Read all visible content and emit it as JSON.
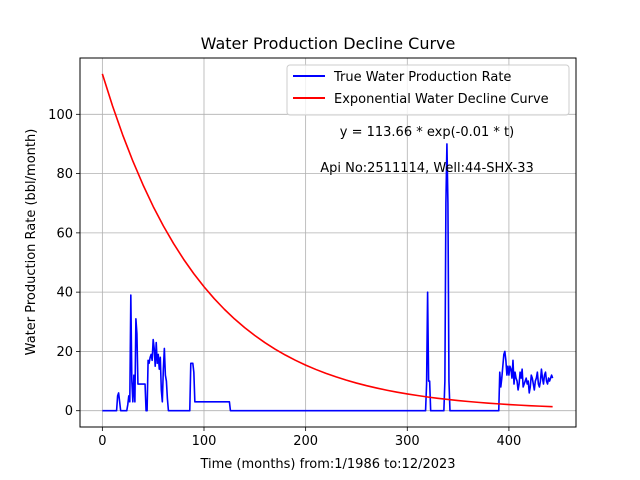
{
  "chart_data": {
    "type": "line",
    "title": "Water Production Decline Curve",
    "xlabel": "Time (months) from:1/1986 to:12/2023",
    "ylabel": "Water Production Rate (bbl/month)",
    "xlim": [
      -22,
      466
    ],
    "ylim": [
      -5.5,
      119
    ],
    "xticks": [
      0,
      100,
      200,
      300,
      400
    ],
    "yticks": [
      0,
      20,
      40,
      60,
      80,
      100
    ],
    "grid": true,
    "legend_position": "top-right",
    "annotations": [
      "y = 113.66 * exp(-0.01 * t)",
      "Api No:2511114, Well:44-SHX-33"
    ],
    "series": [
      {
        "name": "True Water Production Rate",
        "color": "#0000ff",
        "x": [
          0,
          14,
          15,
          16,
          17,
          18,
          24,
          25,
          26,
          27,
          28,
          29,
          30,
          31,
          32,
          33,
          34,
          35,
          36,
          37,
          38,
          42,
          43,
          44,
          45,
          46,
          47,
          48,
          49,
          50,
          51,
          52,
          53,
          54,
          55,
          56,
          57,
          58,
          59,
          60,
          61,
          62,
          63,
          64,
          65,
          66,
          67,
          68,
          69,
          70,
          71,
          86,
          87,
          88,
          89,
          90,
          91,
          92,
          93,
          124,
          125,
          126,
          127,
          318,
          319,
          320,
          321,
          322,
          323,
          324,
          336,
          337,
          338,
          339,
          340,
          341,
          342,
          390,
          391,
          392,
          393,
          394,
          395,
          396,
          397,
          398,
          399,
          400,
          401,
          402,
          403,
          404,
          405,
          406,
          407,
          408,
          409,
          410,
          411,
          412,
          413,
          414,
          415,
          416,
          417,
          418,
          419,
          420,
          421,
          422,
          423,
          424,
          425,
          426,
          427,
          428,
          429,
          430,
          431,
          432,
          433,
          434,
          435,
          436,
          437,
          438,
          439,
          440,
          441,
          442,
          443
        ],
        "values": [
          0,
          0,
          5,
          6,
          3,
          0,
          0,
          2,
          5,
          3,
          39,
          10,
          3,
          12,
          3,
          31,
          26,
          9,
          9,
          9,
          9,
          9,
          0,
          0,
          17,
          16,
          18,
          19,
          17,
          24,
          21,
          15,
          23,
          16,
          19,
          14,
          18,
          7,
          3,
          14,
          21,
          12,
          10,
          4,
          0,
          0,
          0,
          0,
          0,
          0,
          0,
          0,
          16,
          16,
          16,
          13,
          3,
          3,
          3,
          3,
          3,
          0,
          0,
          0,
          9,
          40,
          10,
          10,
          0,
          0,
          0,
          10,
          70,
          90,
          70,
          10,
          0,
          0,
          13,
          8,
          11,
          15,
          19,
          20,
          17,
          12,
          15,
          12,
          15,
          14,
          11,
          17,
          9,
          13,
          11,
          10,
          7,
          9,
          13,
          11,
          14,
          8,
          9,
          10,
          11,
          9,
          10,
          6,
          8,
          12,
          11,
          9,
          7,
          10,
          11,
          13,
          9,
          8,
          10,
          14,
          11,
          9,
          12,
          13,
          10,
          9,
          11,
          10,
          11,
          12,
          11
        ]
      },
      {
        "name": "Exponential Water Decline Curve",
        "color": "#ff0000",
        "x": [
          0,
          10,
          20,
          30,
          40,
          50,
          60,
          70,
          80,
          90,
          100,
          110,
          120,
          130,
          140,
          150,
          160,
          170,
          180,
          190,
          200,
          210,
          220,
          230,
          240,
          250,
          260,
          270,
          280,
          290,
          300,
          310,
          320,
          330,
          340,
          350,
          360,
          370,
          380,
          390,
          400,
          410,
          420,
          430,
          443
        ],
        "values": [
          113.66,
          102.85,
          93.05,
          84.21,
          76.2,
          68.91,
          62.37,
          56.43,
          51.06,
          46.2,
          41.81,
          37.84,
          34.23,
          30.97,
          28.03,
          25.37,
          22.94,
          20.76,
          18.79,
          17.0,
          15.38,
          13.92,
          12.6,
          11.4,
          10.31,
          9.33,
          8.44,
          7.64,
          6.91,
          6.25,
          5.66,
          5.12,
          4.63,
          4.19,
          3.79,
          3.43,
          3.1,
          2.81,
          2.54,
          2.3,
          2.08,
          1.88,
          1.7,
          1.54,
          1.35
        ]
      }
    ]
  }
}
